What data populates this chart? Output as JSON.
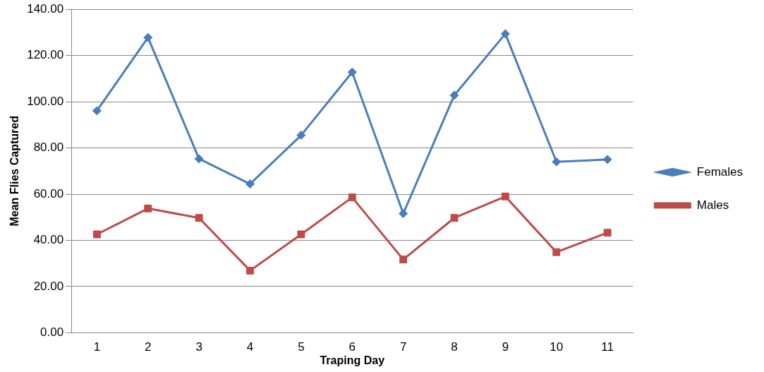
{
  "chart_data": {
    "type": "line",
    "xlabel": "Traping Day",
    "ylabel": "Mean Flies Captured",
    "categories": [
      "1",
      "2",
      "3",
      "4",
      "5",
      "6",
      "7",
      "8",
      "9",
      "10",
      "11"
    ],
    "series": [
      {
        "name": "Females",
        "color": "#4a7ebb",
        "marker": "diamond",
        "values": [
          96.1,
          127.8,
          75.3,
          64.4,
          85.5,
          112.8,
          51.6,
          102.8,
          129.4,
          74.0,
          75.0
        ]
      },
      {
        "name": "Males",
        "color": "#be4b48",
        "marker": "square",
        "values": [
          42.6,
          53.8,
          49.7,
          26.9,
          42.6,
          58.6,
          31.7,
          49.7,
          59.0,
          34.9,
          43.3
        ]
      }
    ],
    "ylim": [
      0,
      140
    ],
    "yticks": [
      {
        "value": 0,
        "label": "0.00"
      },
      {
        "value": 20,
        "label": "20.00"
      },
      {
        "value": 40,
        "label": "40.00"
      },
      {
        "value": 60,
        "label": "60.00"
      },
      {
        "value": 80,
        "label": "80.00"
      },
      {
        "value": 100,
        "label": "100.00"
      },
      {
        "value": 120,
        "label": "120.00"
      },
      {
        "value": 140,
        "label": "140.00"
      }
    ],
    "grid": "y",
    "legend": "right",
    "line_style": "solid"
  }
}
